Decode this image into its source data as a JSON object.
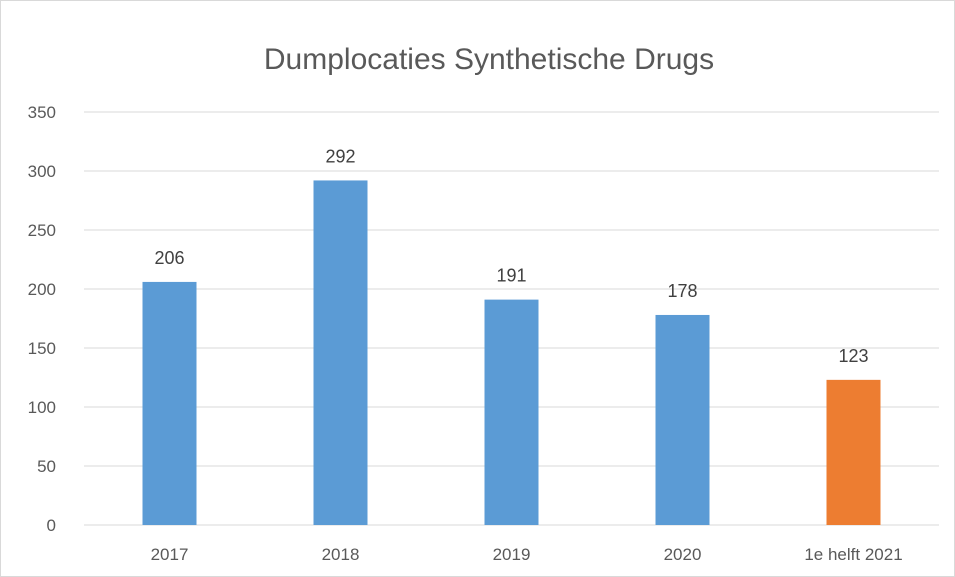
{
  "chart_data": {
    "type": "bar",
    "title": "Dumplocaties Synthetische Drugs",
    "xlabel": "",
    "ylabel": "",
    "categories": [
      "2017",
      "2018",
      "2019",
      "2020",
      "1e helft 2021"
    ],
    "values": [
      206,
      292,
      191,
      178,
      123
    ],
    "data_labels": [
      "206",
      "292",
      "191",
      "178",
      "123"
    ],
    "bar_colors": [
      "#5b9bd5",
      "#5b9bd5",
      "#5b9bd5",
      "#5b9bd5",
      "#ed7d31"
    ],
    "ylim": [
      0,
      350
    ],
    "yticks": [
      0,
      50,
      100,
      150,
      200,
      250,
      300,
      350
    ],
    "ytick_labels": [
      "0",
      "50",
      "100",
      "150",
      "200",
      "250",
      "300",
      "350"
    ],
    "grid": true,
    "legend": "none"
  }
}
